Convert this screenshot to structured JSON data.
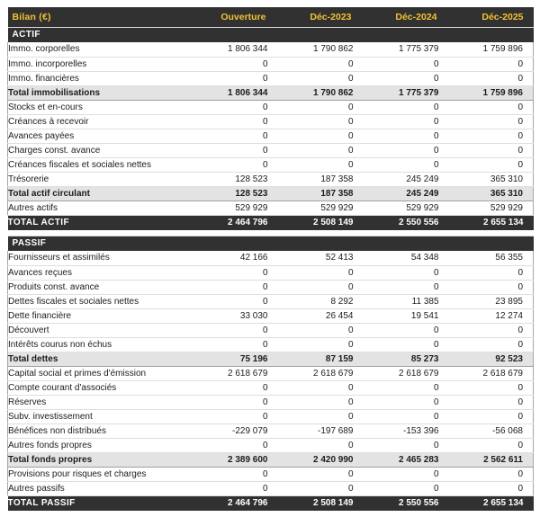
{
  "colors": {
    "header_bg": "#313131",
    "accent_yellow": "#f1c232",
    "subtotal_bg": "#e3e3e3",
    "row_border": "#dedede",
    "text": "#1c1c1c"
  },
  "header": {
    "title": "Bilan (€)",
    "columns": [
      "Ouverture",
      "Déc-2023",
      "Déc-2024",
      "Déc-2025"
    ]
  },
  "sections": [
    {
      "name": "ACTIF",
      "rows": [
        {
          "type": "normal",
          "label": "Immo. corporelles",
          "values": [
            "1 806 344",
            "1 790 862",
            "1 775 379",
            "1 759 896"
          ]
        },
        {
          "type": "normal",
          "label": "Immo. incorporelles",
          "values": [
            "0",
            "0",
            "0",
            "0"
          ]
        },
        {
          "type": "normal",
          "label": "Immo. financières",
          "values": [
            "0",
            "0",
            "0",
            "0"
          ]
        },
        {
          "type": "subtotal",
          "label": "Total immobilisations",
          "values": [
            "1 806 344",
            "1 790 862",
            "1 775 379",
            "1 759 896"
          ]
        },
        {
          "type": "normal",
          "label": "Stocks et en-cours",
          "values": [
            "0",
            "0",
            "0",
            "0"
          ]
        },
        {
          "type": "normal",
          "label": "Créances à recevoir",
          "values": [
            "0",
            "0",
            "0",
            "0"
          ]
        },
        {
          "type": "normal",
          "label": "Avances payées",
          "values": [
            "0",
            "0",
            "0",
            "0"
          ]
        },
        {
          "type": "normal",
          "label": "Charges const. avance",
          "values": [
            "0",
            "0",
            "0",
            "0"
          ]
        },
        {
          "type": "normal",
          "label": "Créances fiscales et sociales nettes",
          "values": [
            "0",
            "0",
            "0",
            "0"
          ]
        },
        {
          "type": "normal",
          "label": "Trésorerie",
          "values": [
            "128 523",
            "187 358",
            "245 249",
            "365 310"
          ]
        },
        {
          "type": "subtotal",
          "label": "Total actif circulant",
          "values": [
            "128 523",
            "187 358",
            "245 249",
            "365 310"
          ]
        },
        {
          "type": "normal",
          "label": "Autres actifs",
          "values": [
            "529 929",
            "529 929",
            "529 929",
            "529 929"
          ]
        }
      ],
      "total": {
        "label": "TOTAL ACTIF",
        "values": [
          "2 464 796",
          "2 508 149",
          "2 550 556",
          "2 655 134"
        ]
      }
    },
    {
      "name": "PASSIF",
      "rows": [
        {
          "type": "normal",
          "label": "Fournisseurs et assimilés",
          "values": [
            "42 166",
            "52 413",
            "54 348",
            "56 355"
          ]
        },
        {
          "type": "normal",
          "label": "Avances reçues",
          "values": [
            "0",
            "0",
            "0",
            "0"
          ]
        },
        {
          "type": "normal",
          "label": "Produits const. avance",
          "values": [
            "0",
            "0",
            "0",
            "0"
          ]
        },
        {
          "type": "normal",
          "label": "Dettes fiscales et sociales nettes",
          "values": [
            "0",
            "8 292",
            "11 385",
            "23 895"
          ]
        },
        {
          "type": "normal",
          "label": "Dette financière",
          "values": [
            "33 030",
            "26 454",
            "19 541",
            "12 274"
          ]
        },
        {
          "type": "normal",
          "label": "Découvert",
          "values": [
            "0",
            "0",
            "0",
            "0"
          ]
        },
        {
          "type": "normal",
          "label": "Intérêts courus non échus",
          "values": [
            "0",
            "0",
            "0",
            "0"
          ]
        },
        {
          "type": "subtotal",
          "label": "Total dettes",
          "values": [
            "75 196",
            "87 159",
            "85 273",
            "92 523"
          ]
        },
        {
          "type": "normal",
          "label": "Capital social et primes d'émission",
          "values": [
            "2 618 679",
            "2 618 679",
            "2 618 679",
            "2 618 679"
          ]
        },
        {
          "type": "normal",
          "label": "Compte courant d'associés",
          "values": [
            "0",
            "0",
            "0",
            "0"
          ]
        },
        {
          "type": "normal",
          "label": "Réserves",
          "values": [
            "0",
            "0",
            "0",
            "0"
          ]
        },
        {
          "type": "normal",
          "label": "Subv. investissement",
          "values": [
            "0",
            "0",
            "0",
            "0"
          ]
        },
        {
          "type": "normal",
          "label": "Bénéfices non distribués",
          "values": [
            "-229 079",
            "-197 689",
            "-153 396",
            "-56 068"
          ]
        },
        {
          "type": "normal",
          "label": "Autres fonds propres",
          "values": [
            "0",
            "0",
            "0",
            "0"
          ]
        },
        {
          "type": "subtotal",
          "label": "Total fonds propres",
          "values": [
            "2 389 600",
            "2 420 990",
            "2 465 283",
            "2 562 611"
          ]
        },
        {
          "type": "normal",
          "label": "Provisions pour risques et charges",
          "values": [
            "0",
            "0",
            "0",
            "0"
          ]
        },
        {
          "type": "normal",
          "label": "Autres passifs",
          "values": [
            "0",
            "0",
            "0",
            "0"
          ]
        }
      ],
      "total": {
        "label": "TOTAL PASSIF",
        "values": [
          "2 464 796",
          "2 508 149",
          "2 550 556",
          "2 655 134"
        ]
      }
    }
  ]
}
